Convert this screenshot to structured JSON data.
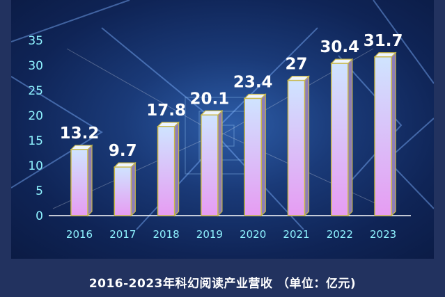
{
  "chart_data": {
    "type": "bar",
    "categories": [
      "2016",
      "2017",
      "2018",
      "2019",
      "2020",
      "2021",
      "2022",
      "2023"
    ],
    "values": [
      13.2,
      9.7,
      17.8,
      20.1,
      23.4,
      27,
      30.4,
      31.7
    ],
    "value_labels": [
      "13.2",
      "9.7",
      "17.8",
      "20.1",
      "23.4",
      "27",
      "30.4",
      "31.7"
    ],
    "y_ticks": [
      "0",
      "5",
      "10",
      "15",
      "20",
      "25",
      "30",
      "35"
    ],
    "ylim": [
      0,
      35
    ],
    "title": "",
    "caption": "2016-2023年科幻阅读产业营收 （单位：亿元)",
    "xlabel": "",
    "ylabel": "",
    "grid": false,
    "legend": "none",
    "colors": {
      "bar_top": "#cfe4ff",
      "bar_bottom": "#e69cf2",
      "bar_side": "#8d7db8",
      "bar_outline": "#c9b84a",
      "tick_label": "#8ff3ff",
      "value_label": "#ffffff",
      "background": "#1a3a78"
    }
  }
}
